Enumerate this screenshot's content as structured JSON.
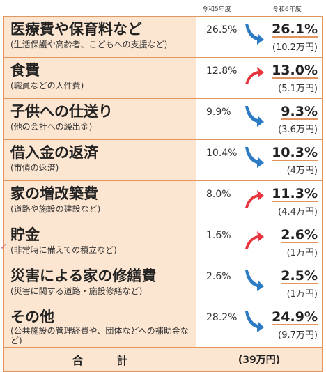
{
  "headers": {
    "prev_year": "令和5年度",
    "curr_year": "令和6年度"
  },
  "colors": {
    "up_arrow": "#e8343c",
    "down_arrow": "#2c7bc4",
    "label_bg": "#fce6d1",
    "border": "#e0965e"
  },
  "rows": [
    {
      "label": "医療費や保育料など",
      "sub": "(生活保護や高齢者、こどもへの支援など)",
      "prev": "26.5%",
      "curr": "26.1%",
      "amount": "(10.2万円)",
      "trend": "down"
    },
    {
      "label": "食費",
      "sub": "(職員などの人件費)",
      "prev": "12.8%",
      "curr": "13.0%",
      "amount": "(5.1万円)",
      "trend": "up"
    },
    {
      "label": "子供への仕送り",
      "sub": "(他の会計への繰出金)",
      "prev": "9.9%",
      "curr": "9.3%",
      "amount": "(3.6万円)",
      "trend": "down"
    },
    {
      "label": "借入金の返済",
      "sub": "(市債の返済)",
      "prev": "10.4%",
      "curr": "10.3%",
      "amount": "(4万円)",
      "trend": "down"
    },
    {
      "label": "家の増改築費",
      "sub": "(道路や施設の建設など)",
      "prev": "8.0%",
      "curr": "11.3%",
      "amount": "(4.4万円)",
      "trend": "up"
    },
    {
      "label": "貯金",
      "sub": "(非常時に備えての積立など)",
      "prev": "1.6%",
      "curr": "2.6%",
      "amount": "(1万円)",
      "trend": "up"
    },
    {
      "label": "災害による家の修繕費",
      "sub": "(災害に関する道路・施設修繕など)",
      "prev": "2.6%",
      "curr": "2.5%",
      "amount": "(1万円)",
      "trend": "down"
    },
    {
      "label": "その他",
      "sub": "(公共施設の管理経費や、団体などへの補助金など)",
      "prev": "28.2%",
      "curr": "24.9%",
      "amount": "(9.7万円)",
      "trend": "down"
    }
  ],
  "total": {
    "label": "合計",
    "amount": "(39万円)"
  }
}
